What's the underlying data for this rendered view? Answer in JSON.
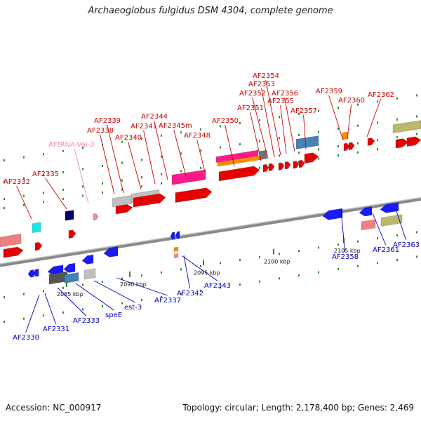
{
  "title": "Archaeoglobus fulgidus DSM 4304, complete genome",
  "accession_text": "Accession: NC_000917",
  "meta_text": "Topology: circular; Length: 2,178,400 bp; Genes: 2,469",
  "colors": {
    "top_label": "#cc0000",
    "trna_label": "#ee88bb",
    "bottom_label": "#0000bb",
    "backbone": "#8a8a8a",
    "tick": "#2a8a2a"
  },
  "scale_labels": [
    "2085 kbp",
    "2090 kbp",
    "2095 kbp",
    "2100 kbp",
    "2105 kbp"
  ],
  "top_labels": [
    "AF2332",
    "AF2335",
    "AFtRNA-Val-3",
    "AF2338",
    "AF2339",
    "AF2340",
    "AF2341",
    "AF2344",
    "AF2345m",
    "AF2348",
    "AF2350",
    "AF2351",
    "AF2352",
    "AF2353",
    "AF2354",
    "AF2355",
    "AF2356",
    "AF2357",
    "AF2359",
    "AF2360",
    "AF2362"
  ],
  "bottom_labels": [
    "AF2330",
    "AF2331",
    "AF2333",
    "speE",
    "est-3",
    "AF2337",
    "AF2342",
    "AF2343",
    "AF2358",
    "AF2361",
    "AF2363"
  ]
}
